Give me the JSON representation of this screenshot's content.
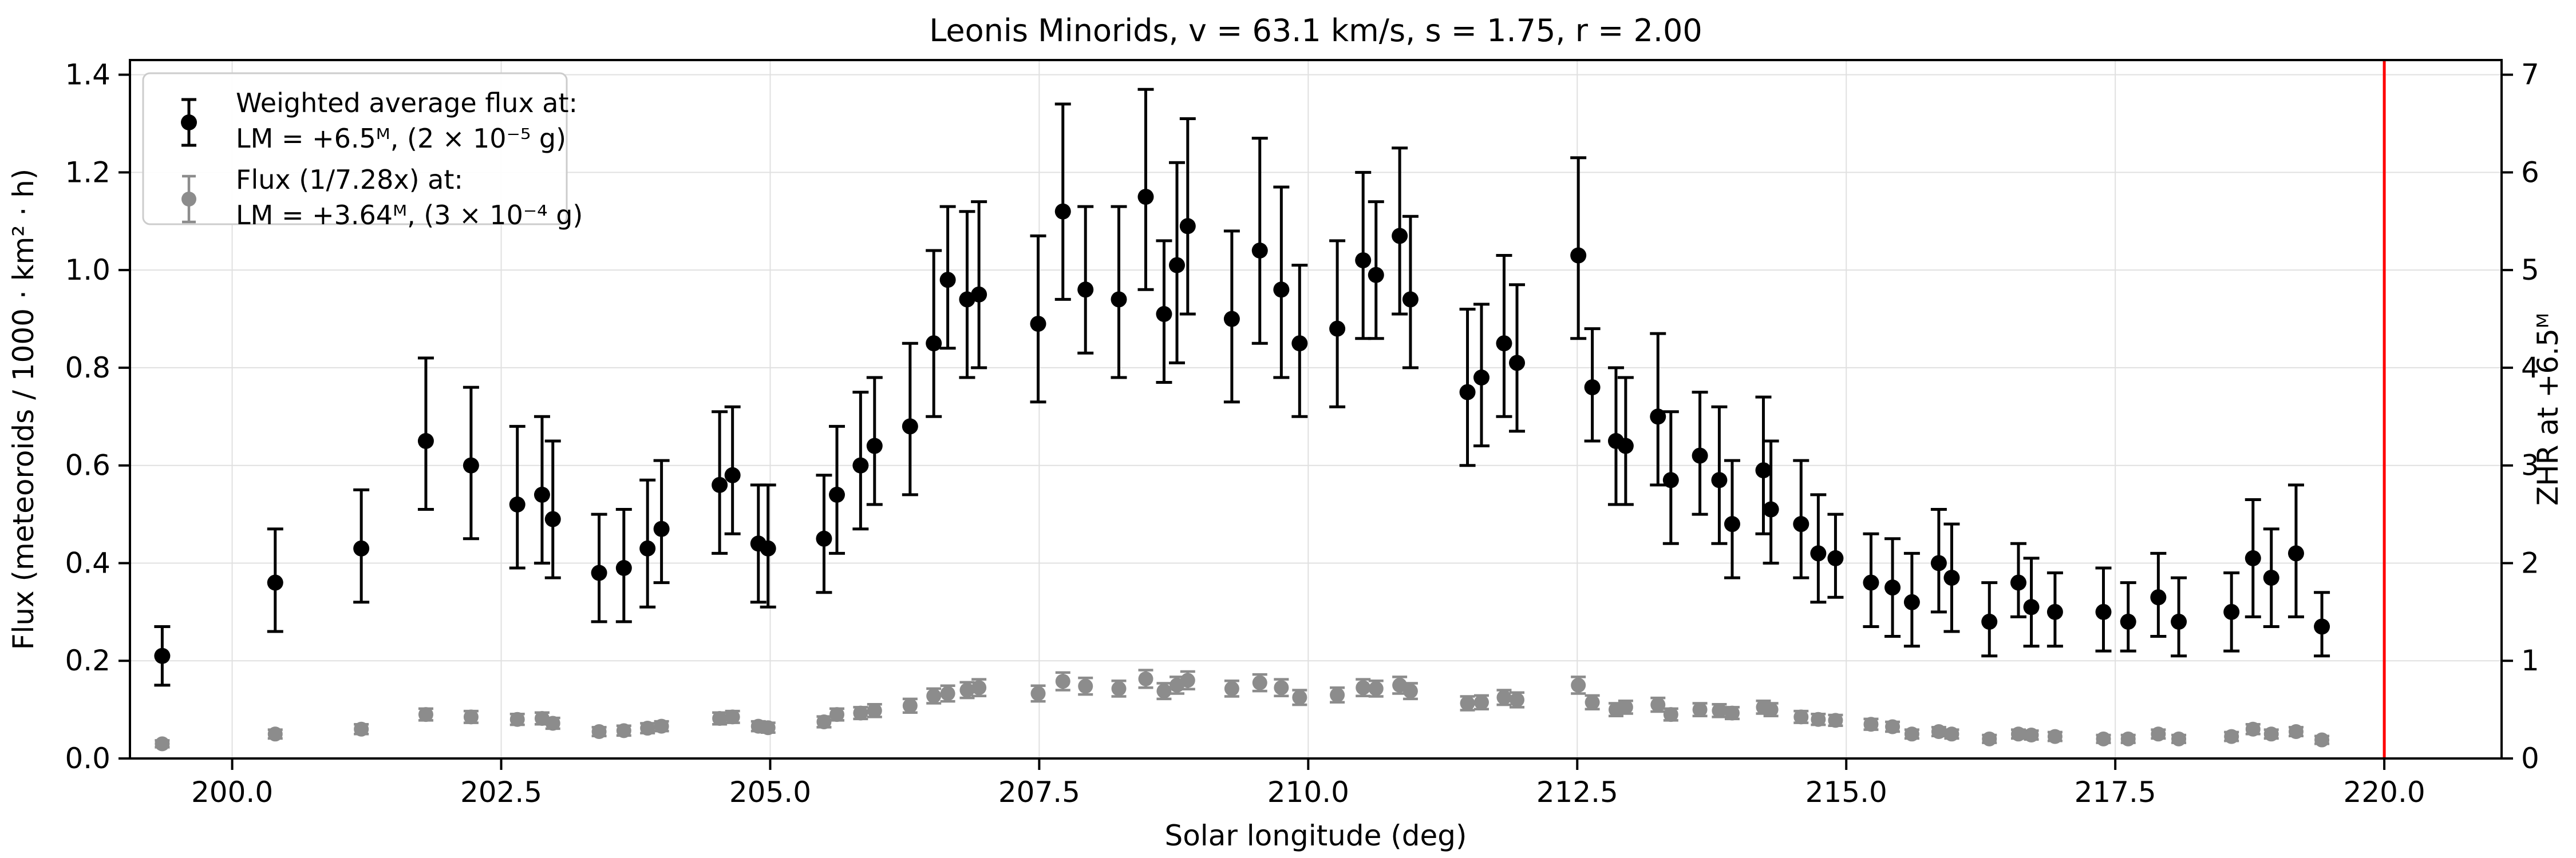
{
  "figure": {
    "title": "Leonis Minorids, v = 63.1 km/s, s = 1.75, r = 2.00"
  },
  "legend": {
    "entries": [
      {
        "marker": "black-errorbar-dot",
        "color": "#000000",
        "line1": "Weighted average flux at:",
        "line2": "LM = +6.5ᴹ, (2 × 10⁻⁵ g)"
      },
      {
        "marker": "gray-errorbar-dot",
        "color": "#8c8c8c",
        "line1": "Flux (1/7.28x) at:",
        "line2": "LM = +3.64ᴹ, (3 × 10⁻⁴ g)"
      }
    ]
  },
  "colors": {
    "series_black": "#000000",
    "series_gray": "#8c8c8c",
    "grid": "#e0e0e0",
    "spine": "#000000",
    "vline_red": "#ff0000",
    "legend_border": "#cccccc",
    "background": "#ffffff"
  },
  "chart_data": {
    "type": "scatter",
    "title": "Leonis Minorids, v = 63.1 km/s, s = 1.75, r = 2.00",
    "xlabel": "Solar longitude (deg)",
    "ylabel_left": "Flux (meteoroids / 1000 · km² · h)",
    "ylabel_right": "ZHR at +6.5ᴹ",
    "xlim": [
      199.05,
      221.09
    ],
    "ylim_left": [
      0.0,
      1.43
    ],
    "ylim_right": [
      0.0,
      7.15
    ],
    "x_ticks": [
      200.0,
      202.5,
      205.0,
      207.5,
      210.0,
      212.5,
      215.0,
      217.5,
      220.0
    ],
    "y_ticks_left": [
      0.0,
      0.2,
      0.4,
      0.6,
      0.8,
      1.0,
      1.2,
      1.4
    ],
    "y_ticks_right": [
      0,
      1,
      2,
      3,
      4,
      5,
      6,
      7
    ],
    "grid": true,
    "legend_position": "upper left",
    "vline": {
      "x": 220.0,
      "color": "#ff0000"
    },
    "series": [
      {
        "name": "Weighted average flux at: LM = +6.5ᴹ, (2 × 10⁻⁵ g)",
        "color": "#000000",
        "marker_radius": 14,
        "point_format": [
          "solar_longitude_deg",
          "flux",
          "err_minus",
          "err_plus"
        ],
        "points": [
          [
            199.35,
            0.21,
            0.06,
            0.06
          ],
          [
            200.4,
            0.36,
            0.1,
            0.11
          ],
          [
            201.2,
            0.43,
            0.11,
            0.12
          ],
          [
            201.8,
            0.65,
            0.14,
            0.17
          ],
          [
            202.22,
            0.6,
            0.15,
            0.16
          ],
          [
            202.65,
            0.52,
            0.13,
            0.16
          ],
          [
            202.88,
            0.54,
            0.14,
            0.16
          ],
          [
            202.98,
            0.49,
            0.12,
            0.16
          ],
          [
            203.41,
            0.38,
            0.1,
            0.12
          ],
          [
            203.64,
            0.39,
            0.11,
            0.12
          ],
          [
            203.86,
            0.43,
            0.12,
            0.14
          ],
          [
            203.99,
            0.47,
            0.11,
            0.14
          ],
          [
            204.53,
            0.56,
            0.14,
            0.15
          ],
          [
            204.65,
            0.58,
            0.12,
            0.14
          ],
          [
            204.89,
            0.44,
            0.12,
            0.12
          ],
          [
            204.98,
            0.43,
            0.12,
            0.13
          ],
          [
            205.5,
            0.45,
            0.11,
            0.13
          ],
          [
            205.62,
            0.54,
            0.12,
            0.14
          ],
          [
            205.84,
            0.6,
            0.13,
            0.15
          ],
          [
            205.97,
            0.64,
            0.12,
            0.14
          ],
          [
            206.3,
            0.68,
            0.14,
            0.17
          ],
          [
            206.52,
            0.85,
            0.15,
            0.19
          ],
          [
            206.65,
            0.98,
            0.14,
            0.15
          ],
          [
            206.83,
            0.94,
            0.16,
            0.18
          ],
          [
            206.94,
            0.95,
            0.15,
            0.19
          ],
          [
            207.49,
            0.89,
            0.16,
            0.18
          ],
          [
            207.72,
            1.12,
            0.18,
            0.22
          ],
          [
            207.93,
            0.96,
            0.13,
            0.17
          ],
          [
            208.24,
            0.94,
            0.16,
            0.19
          ],
          [
            208.49,
            1.15,
            0.19,
            0.22
          ],
          [
            208.66,
            0.91,
            0.14,
            0.15
          ],
          [
            208.78,
            1.01,
            0.2,
            0.21
          ],
          [
            208.88,
            1.09,
            0.18,
            0.22
          ],
          [
            209.29,
            0.9,
            0.17,
            0.18
          ],
          [
            209.55,
            1.04,
            0.19,
            0.23
          ],
          [
            209.75,
            0.96,
            0.18,
            0.21
          ],
          [
            209.92,
            0.85,
            0.15,
            0.16
          ],
          [
            210.27,
            0.88,
            0.16,
            0.18
          ],
          [
            210.51,
            1.02,
            0.16,
            0.18
          ],
          [
            210.63,
            0.99,
            0.13,
            0.15
          ],
          [
            210.85,
            1.07,
            0.16,
            0.18
          ],
          [
            210.95,
            0.94,
            0.14,
            0.17
          ],
          [
            211.48,
            0.75,
            0.15,
            0.17
          ],
          [
            211.61,
            0.78,
            0.14,
            0.15
          ],
          [
            211.82,
            0.85,
            0.15,
            0.18
          ],
          [
            211.94,
            0.81,
            0.14,
            0.16
          ],
          [
            212.51,
            1.03,
            0.17,
            0.2
          ],
          [
            212.64,
            0.76,
            0.11,
            0.12
          ],
          [
            212.86,
            0.65,
            0.13,
            0.15
          ],
          [
            212.95,
            0.64,
            0.12,
            0.14
          ],
          [
            213.25,
            0.7,
            0.14,
            0.17
          ],
          [
            213.37,
            0.57,
            0.13,
            0.14
          ],
          [
            213.64,
            0.62,
            0.12,
            0.13
          ],
          [
            213.82,
            0.57,
            0.13,
            0.15
          ],
          [
            213.94,
            0.48,
            0.11,
            0.13
          ],
          [
            214.23,
            0.59,
            0.13,
            0.15
          ],
          [
            214.3,
            0.51,
            0.11,
            0.14
          ],
          [
            214.58,
            0.48,
            0.11,
            0.13
          ],
          [
            214.74,
            0.42,
            0.1,
            0.12
          ],
          [
            214.9,
            0.41,
            0.08,
            0.09
          ],
          [
            215.23,
            0.36,
            0.09,
            0.1
          ],
          [
            215.43,
            0.35,
            0.1,
            0.1
          ],
          [
            215.61,
            0.32,
            0.09,
            0.1
          ],
          [
            215.86,
            0.4,
            0.1,
            0.11
          ],
          [
            215.98,
            0.37,
            0.11,
            0.11
          ],
          [
            216.33,
            0.28,
            0.07,
            0.08
          ],
          [
            216.6,
            0.36,
            0.07,
            0.08
          ],
          [
            216.72,
            0.31,
            0.08,
            0.1
          ],
          [
            216.94,
            0.3,
            0.07,
            0.08
          ],
          [
            217.39,
            0.3,
            0.08,
            0.09
          ],
          [
            217.62,
            0.28,
            0.06,
            0.08
          ],
          [
            217.9,
            0.33,
            0.08,
            0.09
          ],
          [
            218.09,
            0.28,
            0.07,
            0.09
          ],
          [
            218.58,
            0.3,
            0.08,
            0.08
          ],
          [
            218.78,
            0.41,
            0.12,
            0.12
          ],
          [
            218.95,
            0.37,
            0.1,
            0.1
          ],
          [
            219.18,
            0.42,
            0.13,
            0.14
          ],
          [
            219.42,
            0.27,
            0.06,
            0.07
          ]
        ]
      },
      {
        "name": "Flux (1/7.28x) at: LM = +3.64ᴹ, (3 × 10⁻⁴ g)",
        "color": "#8c8c8c",
        "marker_radius": 13,
        "point_format": [
          "solar_longitude_deg",
          "flux",
          "err_sym"
        ],
        "points": [
          [
            199.35,
            0.03,
            0.007
          ],
          [
            200.4,
            0.05,
            0.009
          ],
          [
            201.2,
            0.06,
            0.01
          ],
          [
            201.8,
            0.09,
            0.012
          ],
          [
            202.22,
            0.085,
            0.012
          ],
          [
            202.65,
            0.08,
            0.011
          ],
          [
            202.88,
            0.082,
            0.012
          ],
          [
            202.98,
            0.072,
            0.011
          ],
          [
            203.41,
            0.055,
            0.009
          ],
          [
            203.64,
            0.057,
            0.01
          ],
          [
            203.86,
            0.062,
            0.01
          ],
          [
            203.99,
            0.066,
            0.01
          ],
          [
            204.53,
            0.082,
            0.012
          ],
          [
            204.65,
            0.085,
            0.012
          ],
          [
            204.89,
            0.066,
            0.01
          ],
          [
            204.98,
            0.063,
            0.01
          ],
          [
            205.5,
            0.075,
            0.011
          ],
          [
            205.62,
            0.09,
            0.012
          ],
          [
            205.84,
            0.093,
            0.012
          ],
          [
            205.97,
            0.098,
            0.013
          ],
          [
            206.3,
            0.108,
            0.014
          ],
          [
            206.52,
            0.128,
            0.015
          ],
          [
            206.65,
            0.133,
            0.016
          ],
          [
            206.83,
            0.14,
            0.016
          ],
          [
            206.94,
            0.145,
            0.017
          ],
          [
            207.49,
            0.133,
            0.016
          ],
          [
            207.72,
            0.158,
            0.018
          ],
          [
            207.93,
            0.148,
            0.017
          ],
          [
            208.24,
            0.143,
            0.016
          ],
          [
            208.49,
            0.163,
            0.018
          ],
          [
            208.66,
            0.138,
            0.016
          ],
          [
            208.78,
            0.15,
            0.017
          ],
          [
            208.88,
            0.16,
            0.018
          ],
          [
            209.29,
            0.143,
            0.016
          ],
          [
            209.55,
            0.155,
            0.017
          ],
          [
            209.75,
            0.145,
            0.017
          ],
          [
            209.92,
            0.125,
            0.015
          ],
          [
            210.27,
            0.13,
            0.015
          ],
          [
            210.51,
            0.145,
            0.017
          ],
          [
            210.63,
            0.143,
            0.016
          ],
          [
            210.85,
            0.15,
            0.017
          ],
          [
            210.95,
            0.138,
            0.016
          ],
          [
            211.48,
            0.113,
            0.014
          ],
          [
            211.61,
            0.115,
            0.014
          ],
          [
            211.82,
            0.125,
            0.015
          ],
          [
            211.94,
            0.12,
            0.015
          ],
          [
            212.51,
            0.15,
            0.017
          ],
          [
            212.64,
            0.115,
            0.014
          ],
          [
            212.86,
            0.1,
            0.013
          ],
          [
            212.95,
            0.105,
            0.013
          ],
          [
            213.25,
            0.11,
            0.014
          ],
          [
            213.37,
            0.09,
            0.012
          ],
          [
            213.64,
            0.1,
            0.013
          ],
          [
            213.82,
            0.098,
            0.013
          ],
          [
            213.94,
            0.093,
            0.012
          ],
          [
            214.23,
            0.105,
            0.013
          ],
          [
            214.3,
            0.1,
            0.013
          ],
          [
            214.58,
            0.085,
            0.012
          ],
          [
            214.74,
            0.08,
            0.011
          ],
          [
            214.9,
            0.078,
            0.011
          ],
          [
            215.23,
            0.07,
            0.011
          ],
          [
            215.43,
            0.065,
            0.01
          ],
          [
            215.61,
            0.05,
            0.009
          ],
          [
            215.86,
            0.055,
            0.009
          ],
          [
            215.98,
            0.05,
            0.009
          ],
          [
            216.33,
            0.04,
            0.008
          ],
          [
            216.6,
            0.05,
            0.009
          ],
          [
            216.72,
            0.048,
            0.009
          ],
          [
            216.94,
            0.045,
            0.009
          ],
          [
            217.39,
            0.04,
            0.008
          ],
          [
            217.62,
            0.04,
            0.008
          ],
          [
            217.9,
            0.05,
            0.009
          ],
          [
            218.09,
            0.04,
            0.008
          ],
          [
            218.58,
            0.045,
            0.009
          ],
          [
            218.78,
            0.06,
            0.01
          ],
          [
            218.95,
            0.05,
            0.009
          ],
          [
            219.18,
            0.055,
            0.009
          ],
          [
            219.42,
            0.038,
            0.008
          ]
        ]
      }
    ]
  }
}
